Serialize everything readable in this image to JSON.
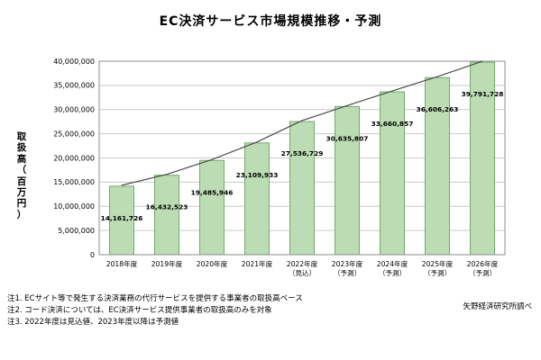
{
  "title": "EC決済サービス市場規模推移・予測",
  "y_axis_title": "取扱高（百万円）",
  "source": "矢野経済研究所調べ",
  "notes": [
    "注1. ECサイト等で発生する決済業務の代行サービスを提供する事業者の取扱高ベース",
    "注2. コード決済については、EC決済サービス提供事業者の取扱高のみを対象",
    "注3. 2022年度は見込値、2023年度以降は予測値"
  ],
  "chart_data": {
    "type": "bar",
    "title": "EC決済サービス市場規模推移・予測",
    "ylabel": "取扱高（百万円）",
    "categories": [
      [
        "2018年度"
      ],
      [
        "2019年度"
      ],
      [
        "2020年度"
      ],
      [
        "2021年度"
      ],
      [
        "2022年度",
        "（見込）"
      ],
      [
        "2023年度",
        "（予測）"
      ],
      [
        "2024年度",
        "（予測）"
      ],
      [
        "2025年度",
        "（予測）"
      ],
      [
        "2026年度",
        "（予測）"
      ]
    ],
    "values": [
      14161726,
      16432523,
      19485946,
      23109933,
      27536729,
      30635807,
      33660857,
      36606263,
      39791728
    ],
    "ylim": [
      0,
      40000000
    ],
    "ytick_step": 5000000,
    "grid": "horizontal",
    "legend": "none",
    "overlay_line": true,
    "bar_color": "#bcdcb4",
    "bar_border": "#74a96c",
    "line_color": "#4a4a4a",
    "gridline_color": "#c9c9c9",
    "plot_border_color": "#8c8c8c"
  }
}
